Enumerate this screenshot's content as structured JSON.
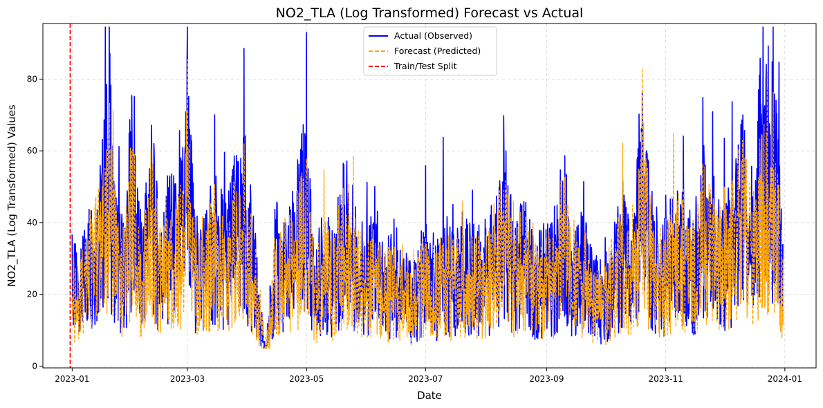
{
  "chart_data": {
    "type": "line",
    "title": "NO2_TLA (Log Transformed) Forecast vs Actual",
    "xlabel": "Date",
    "ylabel": "NO2_TLA (Log Transformed) Values",
    "xlim": [
      "2022-12-17",
      "2024-01-17"
    ],
    "ylim": [
      -0.5,
      95.5
    ],
    "x_ticks": [
      "2023-01",
      "2023-03",
      "2023-05",
      "2023-07",
      "2023-09",
      "2023-11",
      "2024-01"
    ],
    "y_ticks": [
      0,
      20,
      40,
      60,
      80
    ],
    "grid": true,
    "legend_position": "top-center",
    "split_date": "2022-12-31",
    "series": [
      {
        "name": "Actual (Observed)",
        "color": "#0000ff",
        "style": "solid",
        "x": [
          "2023-01-01",
          "2023-01-05",
          "2023-01-10",
          "2023-01-15",
          "2023-01-18",
          "2023-01-20",
          "2023-01-22",
          "2023-01-25",
          "2023-01-28",
          "2023-02-01",
          "2023-02-05",
          "2023-02-10",
          "2023-02-15",
          "2023-02-20",
          "2023-02-25",
          "2023-03-01",
          "2023-03-05",
          "2023-03-10",
          "2023-03-15",
          "2023-03-20",
          "2023-03-25",
          "2023-03-30",
          "2023-04-05",
          "2023-04-10",
          "2023-04-15",
          "2023-04-20",
          "2023-04-25",
          "2023-05-01",
          "2023-05-05",
          "2023-05-10",
          "2023-05-15",
          "2023-05-20",
          "2023-05-25",
          "2023-06-01",
          "2023-06-05",
          "2023-06-10",
          "2023-06-15",
          "2023-06-20",
          "2023-06-25",
          "2023-07-01",
          "2023-07-05",
          "2023-07-10",
          "2023-07-15",
          "2023-07-20",
          "2023-07-25",
          "2023-08-01",
          "2023-08-05",
          "2023-08-10",
          "2023-08-15",
          "2023-08-20",
          "2023-08-25",
          "2023-09-01",
          "2023-09-05",
          "2023-09-10",
          "2023-09-15",
          "2023-09-20",
          "2023-09-25",
          "2023-10-01",
          "2023-10-05",
          "2023-10-10",
          "2023-10-15",
          "2023-10-20",
          "2023-10-25",
          "2023-11-01",
          "2023-11-05",
          "2023-11-10",
          "2023-11-15",
          "2023-11-20",
          "2023-11-25",
          "2023-12-01",
          "2023-12-05",
          "2023-12-10",
          "2023-12-15",
          "2023-12-20",
          "2023-12-23",
          "2023-12-26",
          "2023-12-29",
          "2023-12-31"
        ],
        "values": [
          35,
          30,
          48,
          55,
          74,
          89,
          60,
          45,
          40,
          84,
          35,
          72,
          40,
          55,
          50,
          91,
          40,
          45,
          52,
          48,
          55,
          66,
          35,
          4,
          45,
          40,
          50,
          74,
          30,
          45,
          35,
          62,
          48,
          38,
          45,
          32,
          40,
          35,
          28,
          41,
          30,
          45,
          35,
          42,
          38,
          40,
          45,
          64,
          40,
          48,
          35,
          40,
          38,
          64,
          35,
          45,
          30,
          30,
          40,
          48,
          35,
          84,
          45,
          40,
          56,
          48,
          40,
          60,
          52,
          45,
          55,
          72,
          50,
          91,
          91,
          85,
          60,
          34
        ]
      },
      {
        "name": "Forecast (Predicted)",
        "color": "#ffa500",
        "style": "dashed",
        "x": [
          "2023-01-01",
          "2023-01-05",
          "2023-01-10",
          "2023-01-15",
          "2023-01-18",
          "2023-01-20",
          "2023-01-22",
          "2023-01-25",
          "2023-01-28",
          "2023-02-01",
          "2023-02-05",
          "2023-02-10",
          "2023-02-15",
          "2023-02-20",
          "2023-02-25",
          "2023-03-01",
          "2023-03-05",
          "2023-03-10",
          "2023-03-15",
          "2023-03-20",
          "2023-03-25",
          "2023-03-30",
          "2023-04-05",
          "2023-04-10",
          "2023-04-15",
          "2023-04-20",
          "2023-04-25",
          "2023-05-01",
          "2023-05-05",
          "2023-05-10",
          "2023-05-15",
          "2023-05-20",
          "2023-05-25",
          "2023-06-01",
          "2023-06-05",
          "2023-06-10",
          "2023-06-15",
          "2023-06-20",
          "2023-06-25",
          "2023-07-01",
          "2023-07-05",
          "2023-07-10",
          "2023-07-15",
          "2023-07-20",
          "2023-07-25",
          "2023-08-01",
          "2023-08-05",
          "2023-08-10",
          "2023-08-15",
          "2023-08-20",
          "2023-08-25",
          "2023-09-01",
          "2023-09-05",
          "2023-09-10",
          "2023-09-15",
          "2023-09-20",
          "2023-09-25",
          "2023-10-01",
          "2023-10-05",
          "2023-10-10",
          "2023-10-15",
          "2023-10-20",
          "2023-10-25",
          "2023-11-01",
          "2023-11-05",
          "2023-11-10",
          "2023-11-15",
          "2023-11-20",
          "2023-11-25",
          "2023-12-01",
          "2023-12-05",
          "2023-12-10",
          "2023-12-15",
          "2023-12-20",
          "2023-12-23",
          "2023-12-26",
          "2023-12-29",
          "2023-12-31"
        ],
        "values": [
          32,
          28,
          42,
          50,
          62,
          72,
          55,
          42,
          38,
          70,
          33,
          62,
          38,
          50,
          46,
          72,
          38,
          42,
          48,
          44,
          50,
          55,
          32,
          8,
          40,
          36,
          46,
          58,
          28,
          42,
          33,
          55,
          44,
          35,
          40,
          30,
          36,
          32,
          26,
          37,
          28,
          40,
          32,
          38,
          35,
          37,
          40,
          55,
          37,
          44,
          33,
          37,
          35,
          57,
          32,
          40,
          28,
          28,
          36,
          44,
          32,
          70,
          40,
          36,
          50,
          44,
          36,
          55,
          48,
          40,
          50,
          65,
          46,
          68,
          66,
          62,
          50,
          30
        ]
      }
    ]
  },
  "legend": {
    "actual": "Actual (Observed)",
    "forecast": "Forecast (Predicted)",
    "split": "Train/Test Split"
  }
}
